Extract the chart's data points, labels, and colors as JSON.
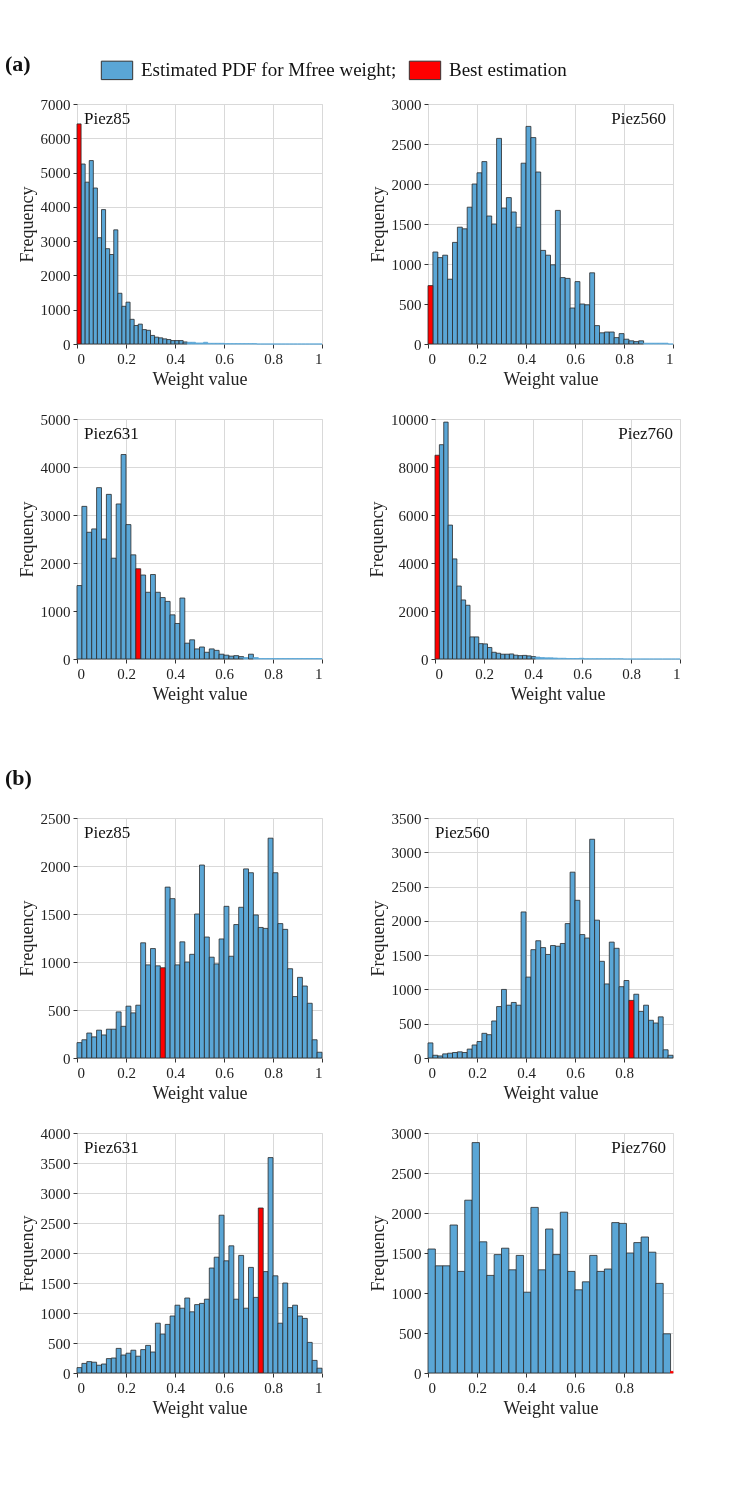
{
  "chart_data": [
    {
      "type": "histogram",
      "title": "Piez85",
      "xlabel": "Weight value",
      "ylabel": "Frequency",
      "annotations": [
        "(a)"
      ],
      "legend": "top",
      "grid": true,
      "xlim": [
        0,
        1
      ],
      "xticks": [
        0,
        0.2,
        0.4,
        0.6,
        0.8,
        1
      ],
      "ylim": [
        0,
        7000
      ],
      "yticks": [
        0,
        1000,
        2000,
        3000,
        4000,
        5000,
        6000,
        7000
      ],
      "bins": [
        0,
        0.0167,
        0.0333,
        0.05,
        0.0667,
        0.0833,
        0.1,
        0.1167,
        0.1333,
        0.15,
        0.1667,
        0.1833,
        0.2,
        0.2167,
        0.2333,
        0.25,
        0.2667,
        0.2833,
        0.3,
        0.3167,
        0.3333,
        0.35,
        0.3667,
        0.3833,
        0.4,
        0.4167,
        0.4333,
        0.45,
        0.4667,
        0.4833,
        0.5,
        0.5167,
        0.5333,
        0.55,
        0.5667,
        0.5833,
        0.6,
        0.6167,
        0.6333,
        0.65,
        0.6667,
        0.6833,
        0.7,
        0.7167,
        0.7333,
        0.75,
        0.7667,
        0.7833,
        0.8,
        0.8167,
        0.8333,
        0.85,
        0.8667,
        0.8833,
        0.9,
        0.9167,
        0.9333,
        0.95,
        0.9667,
        0.9833,
        1
      ],
      "series": [
        {
          "name": "Estimated PDF for Mfree weight;",
          "color": "#5aa6d6",
          "values": [
            null,
            5250,
            4720,
            5350,
            4550,
            3100,
            3920,
            2780,
            2610,
            3330,
            1480,
            1100,
            1220,
            720,
            540,
            580,
            420,
            400,
            250,
            200,
            180,
            150,
            130,
            100,
            100,
            100,
            60,
            50,
            50,
            30,
            30,
            50,
            20,
            20,
            20,
            20,
            10,
            10,
            10,
            10,
            10,
            10,
            10,
            10,
            0,
            0,
            0,
            0,
            0,
            0,
            0,
            0,
            0,
            0,
            0,
            0,
            0,
            0,
            0,
            0
          ]
        },
        {
          "name": "Best estimation",
          "color": "#ff0000",
          "values": [
            6420,
            null,
            null,
            null,
            null,
            null,
            null,
            null,
            null,
            null,
            null,
            null,
            null,
            null,
            null,
            null,
            null,
            null,
            null,
            null,
            null,
            null,
            null,
            null,
            null,
            null,
            null,
            null,
            null,
            null,
            null,
            null,
            null,
            null,
            null,
            null,
            null,
            null,
            null,
            null,
            null,
            null,
            null,
            null,
            null,
            null,
            null,
            null,
            null,
            null,
            null,
            null,
            null,
            null,
            null,
            null,
            null,
            null,
            null,
            null
          ]
        }
      ]
    },
    {
      "type": "histogram",
      "title": "Piez560",
      "xlabel": "Weight value",
      "ylabel": "Frequency",
      "grid": true,
      "xlim": [
        0,
        1
      ],
      "xticks": [
        0,
        0.2,
        0.4,
        0.6,
        0.8,
        1
      ],
      "ylim": [
        0,
        3000
      ],
      "yticks": [
        0,
        500,
        1000,
        1500,
        2000,
        2500,
        3000
      ],
      "bins": [
        0,
        0.02,
        0.04,
        0.06,
        0.08,
        0.1,
        0.12,
        0.14,
        0.16,
        0.18,
        0.2,
        0.22,
        0.24,
        0.26,
        0.28,
        0.3,
        0.32,
        0.34,
        0.36,
        0.38,
        0.4,
        0.42,
        0.44,
        0.46,
        0.48,
        0.5,
        0.52,
        0.54,
        0.56,
        0.58,
        0.6,
        0.62,
        0.64,
        0.66,
        0.68,
        0.7,
        0.72,
        0.74,
        0.76,
        0.78,
        0.8,
        0.82,
        0.84,
        0.86,
        0.88,
        0.9,
        0.92,
        0.94,
        0.96,
        0.98,
        1
      ],
      "series": [
        {
          "color": "#5aa6d6",
          "values": [
            null,
            1150,
            1080,
            1110,
            810,
            1270,
            1460,
            1440,
            1710,
            2000,
            2140,
            2280,
            1600,
            1500,
            2570,
            1700,
            1830,
            1650,
            1460,
            2260,
            2720,
            2580,
            2150,
            1170,
            1110,
            990,
            1670,
            830,
            820,
            450,
            780,
            500,
            490,
            890,
            230,
            140,
            150,
            150,
            80,
            130,
            60,
            40,
            30,
            40,
            10,
            10,
            10,
            10,
            10,
            0
          ]
        },
        {
          "color": "#ff0000",
          "values": [
            730,
            null,
            null,
            null,
            null,
            null,
            null,
            null,
            null,
            null,
            null,
            null,
            null,
            null,
            null,
            null,
            null,
            null,
            null,
            null,
            null,
            null,
            null,
            null,
            null,
            null,
            null,
            null,
            null,
            null,
            null,
            null,
            null,
            null,
            null,
            null,
            null,
            null,
            null,
            null,
            null,
            null,
            null,
            null,
            null,
            null,
            null,
            null,
            null,
            null
          ]
        }
      ]
    },
    {
      "type": "histogram",
      "title": "Piez631",
      "xlabel": "Weight value",
      "ylabel": "Frequency",
      "grid": true,
      "xlim": [
        0,
        1
      ],
      "xticks": [
        0,
        0.2,
        0.4,
        0.6,
        0.8,
        1
      ],
      "ylim": [
        0,
        5000
      ],
      "yticks": [
        0,
        1000,
        2000,
        3000,
        4000,
        5000
      ],
      "bins": [
        0,
        0.02,
        0.04,
        0.06,
        0.08,
        0.1,
        0.12,
        0.14,
        0.16,
        0.18,
        0.2,
        0.22,
        0.24,
        0.26,
        0.28,
        0.3,
        0.32,
        0.34,
        0.36,
        0.38,
        0.4,
        0.42,
        0.44,
        0.46,
        0.48,
        0.5,
        0.52,
        0.54,
        0.56,
        0.58,
        0.6,
        0.62,
        0.64,
        0.66,
        0.68,
        0.7,
        0.72,
        0.74,
        0.76,
        0.78,
        0.8,
        0.82,
        0.84,
        0.86,
        0.88,
        0.9,
        0.92,
        0.94,
        0.96,
        0.98,
        1
      ],
      "series": [
        {
          "color": "#5aa6d6",
          "values": [
            1530,
            3180,
            2640,
            2710,
            3570,
            2500,
            3430,
            2100,
            3230,
            4260,
            2800,
            2170,
            null,
            1750,
            1390,
            1760,
            1390,
            1280,
            1200,
            920,
            740,
            1270,
            330,
            400,
            210,
            250,
            140,
            210,
            180,
            100,
            80,
            60,
            70,
            50,
            30,
            100,
            30,
            10,
            10,
            10,
            10,
            10,
            10,
            10,
            10,
            10,
            10,
            10,
            10,
            10
          ]
        },
        {
          "color": "#ff0000",
          "values": [
            null,
            null,
            null,
            null,
            null,
            null,
            null,
            null,
            null,
            null,
            null,
            null,
            1880,
            null,
            null,
            null,
            null,
            null,
            null,
            null,
            null,
            null,
            null,
            null,
            null,
            null,
            null,
            null,
            null,
            null,
            null,
            null,
            null,
            null,
            null,
            null,
            null,
            null,
            null,
            null,
            null,
            null,
            null,
            null,
            null,
            null,
            null,
            null,
            null,
            null
          ]
        }
      ]
    },
    {
      "type": "histogram",
      "title": "Piez760",
      "xlabel": "Weight value",
      "ylabel": "Frequency",
      "grid": true,
      "xlim": [
        0,
        1
      ],
      "xticks": [
        0,
        0.2,
        0.4,
        0.6,
        0.8,
        1
      ],
      "ylim": [
        0,
        10000
      ],
      "yticks": [
        0,
        2000,
        4000,
        6000,
        8000,
        10000
      ],
      "bins": [
        0,
        0.0179,
        0.0357,
        0.0536,
        0.0714,
        0.0893,
        0.1071,
        0.125,
        0.1429,
        0.1607,
        0.1786,
        0.1964,
        0.2143,
        0.2321,
        0.25,
        0.2679,
        0.2857,
        0.3036,
        0.3214,
        0.3393,
        0.3571,
        0.375,
        0.3929,
        0.4107,
        0.4286,
        0.4464,
        0.4643,
        0.4821,
        0.5,
        0.5179,
        0.5357,
        0.5536,
        0.5714,
        0.5893,
        0.6071,
        0.625,
        0.6429,
        0.6607,
        0.6786,
        0.6964,
        0.7143,
        0.7321,
        0.75,
        0.7679,
        0.7857,
        0.8036,
        0.8214,
        0.8393,
        0.8571,
        0.875,
        0.8929,
        0.9107,
        0.9286,
        0.9464,
        0.9643,
        0.9821,
        1
      ],
      "series": [
        {
          "color": "#5aa6d6",
          "values": [
            null,
            8930,
            9870,
            5580,
            4170,
            3040,
            2460,
            2240,
            920,
            920,
            640,
            630,
            480,
            280,
            240,
            200,
            200,
            210,
            160,
            140,
            150,
            130,
            100,
            80,
            60,
            50,
            50,
            40,
            30,
            30,
            20,
            20,
            20,
            30,
            10,
            10,
            10,
            10,
            10,
            10,
            10,
            10,
            10,
            0,
            0,
            0,
            0,
            0,
            0,
            0,
            0,
            0,
            0,
            0,
            0,
            0
          ]
        },
        {
          "color": "#ff0000",
          "values": [
            8490,
            null,
            null,
            null,
            null,
            null,
            null,
            null,
            null,
            null,
            null,
            null,
            null,
            null,
            null,
            null,
            null,
            null,
            null,
            null,
            null,
            null,
            null,
            null,
            null,
            null,
            null,
            null,
            null,
            null,
            null,
            null,
            null,
            null,
            null,
            null,
            null,
            null,
            null,
            null,
            null,
            null,
            null,
            null,
            null,
            null,
            null,
            null,
            null,
            null,
            null,
            null,
            null,
            null,
            null,
            null
          ]
        }
      ]
    },
    {
      "type": "histogram",
      "title": "Piez85",
      "xlabel": "Weight value",
      "ylabel": "Frequency",
      "annotations": [
        "(b)"
      ],
      "legend": "top",
      "grid": true,
      "xlim": [
        0,
        1
      ],
      "xticks": [
        0,
        0.2,
        0.4,
        0.6,
        0.8,
        1
      ],
      "ylim": [
        0,
        2500
      ],
      "yticks": [
        0,
        500,
        1000,
        1500,
        2000,
        2500
      ],
      "bins": [
        0,
        0.02,
        0.04,
        0.06,
        0.08,
        0.1,
        0.12,
        0.14,
        0.16,
        0.18,
        0.2,
        0.22,
        0.24,
        0.26,
        0.28,
        0.3,
        0.32,
        0.34,
        0.36,
        0.38,
        0.4,
        0.42,
        0.44,
        0.46,
        0.48,
        0.5,
        0.52,
        0.54,
        0.56,
        0.58,
        0.6,
        0.62,
        0.64,
        0.66,
        0.68,
        0.7,
        0.72,
        0.74,
        0.76,
        0.78,
        0.8,
        0.82,
        0.84,
        0.86,
        0.88,
        0.9,
        0.92,
        0.94,
        0.96,
        0.98,
        1
      ],
      "series": [
        {
          "name": "Estimated PDF for Mfree weight;",
          "color": "#5aa6d6",
          "values": [
            160,
            190,
            260,
            220,
            290,
            240,
            300,
            300,
            480,
            330,
            540,
            470,
            550,
            1200,
            970,
            1140,
            960,
            null,
            1780,
            1660,
            970,
            1210,
            1000,
            1080,
            1500,
            2010,
            1260,
            1050,
            980,
            1240,
            1580,
            1060,
            1390,
            1570,
            1970,
            1930,
            1490,
            1360,
            1350,
            2290,
            1930,
            1400,
            1340,
            930,
            640,
            840,
            750,
            570,
            190,
            60
          ]
        },
        {
          "name": "Best estimation",
          "color": "#ff0000",
          "values": [
            null,
            null,
            null,
            null,
            null,
            null,
            null,
            null,
            null,
            null,
            null,
            null,
            null,
            null,
            null,
            null,
            null,
            940,
            null,
            null,
            null,
            null,
            null,
            null,
            null,
            null,
            null,
            null,
            null,
            null,
            null,
            null,
            null,
            null,
            null,
            null,
            null,
            null,
            null,
            null,
            null,
            null,
            null,
            null,
            null,
            null,
            null,
            null,
            null,
            null
          ]
        }
      ]
    },
    {
      "type": "histogram",
      "title": "Piez560",
      "xlabel": "Weight value",
      "ylabel": "Frequency",
      "grid": true,
      "xlim": [
        0,
        1
      ],
      "xticks": [
        0,
        0.2,
        0.4,
        0.6,
        0.8
      ],
      "ylim": [
        0,
        3500
      ],
      "yticks": [
        0,
        500,
        1000,
        1500,
        2000,
        2500,
        3000,
        3500
      ],
      "bins": [
        0,
        0.02,
        0.04,
        0.06,
        0.08,
        0.1,
        0.12,
        0.14,
        0.16,
        0.18,
        0.2,
        0.22,
        0.24,
        0.26,
        0.28,
        0.3,
        0.32,
        0.34,
        0.36,
        0.38,
        0.4,
        0.42,
        0.44,
        0.46,
        0.48,
        0.5,
        0.52,
        0.54,
        0.56,
        0.58,
        0.6,
        0.62,
        0.64,
        0.66,
        0.68,
        0.7,
        0.72,
        0.74,
        0.76,
        0.78,
        0.8,
        0.82,
        0.84,
        0.86,
        0.88,
        0.9,
        0.92,
        0.94,
        0.96,
        0.98,
        1
      ],
      "series": [
        {
          "color": "#5aa6d6",
          "values": [
            220,
            40,
            30,
            60,
            70,
            80,
            90,
            80,
            130,
            190,
            240,
            360,
            340,
            540,
            750,
            1000,
            770,
            810,
            770,
            2130,
            1180,
            1580,
            1710,
            1610,
            1510,
            1640,
            1630,
            1670,
            1960,
            2710,
            2300,
            1800,
            1750,
            3190,
            2010,
            1410,
            1080,
            1690,
            1600,
            1040,
            1130,
            null,
            930,
            680,
            770,
            550,
            510,
            600,
            120,
            40
          ]
        },
        {
          "color": "#ff0000",
          "values": [
            null,
            null,
            null,
            null,
            null,
            null,
            null,
            null,
            null,
            null,
            null,
            null,
            null,
            null,
            null,
            null,
            null,
            null,
            null,
            null,
            null,
            null,
            null,
            null,
            null,
            null,
            null,
            null,
            null,
            null,
            null,
            null,
            null,
            null,
            null,
            null,
            null,
            null,
            null,
            null,
            null,
            840,
            null,
            null,
            null,
            null,
            null,
            null,
            null,
            null
          ]
        }
      ]
    },
    {
      "type": "histogram",
      "title": "Piez631",
      "xlabel": "Weight value",
      "ylabel": "Frequency",
      "grid": true,
      "xlim": [
        0,
        1
      ],
      "xticks": [
        0,
        0.2,
        0.4,
        0.6,
        0.8,
        1
      ],
      "ylim": [
        0,
        4000
      ],
      "yticks": [
        0,
        500,
        1000,
        1500,
        2000,
        2500,
        3000,
        3500,
        4000
      ],
      "bins": [
        0,
        0.02,
        0.04,
        0.06,
        0.08,
        0.1,
        0.12,
        0.14,
        0.16,
        0.18,
        0.2,
        0.22,
        0.24,
        0.26,
        0.28,
        0.3,
        0.32,
        0.34,
        0.36,
        0.38,
        0.4,
        0.42,
        0.44,
        0.46,
        0.48,
        0.5,
        0.52,
        0.54,
        0.56,
        0.58,
        0.6,
        0.62,
        0.64,
        0.66,
        0.68,
        0.7,
        0.72,
        0.74,
        0.76,
        0.78,
        0.8,
        0.82,
        0.84,
        0.86,
        0.88,
        0.9,
        0.92,
        0.94,
        0.96,
        0.98,
        1
      ],
      "series": [
        {
          "color": "#5aa6d6",
          "values": [
            90,
            160,
            190,
            180,
            130,
            150,
            240,
            250,
            410,
            300,
            330,
            380,
            280,
            390,
            460,
            350,
            830,
            650,
            810,
            950,
            1130,
            1080,
            1250,
            1020,
            1140,
            1160,
            1230,
            1750,
            1930,
            2630,
            1870,
            2120,
            1230,
            1960,
            1080,
            1760,
            1260,
            null,
            1690,
            3590,
            1620,
            830,
            1500,
            1090,
            1130,
            950,
            910,
            510,
            210,
            80
          ]
        },
        {
          "color": "#ff0000",
          "values": [
            null,
            null,
            null,
            null,
            null,
            null,
            null,
            null,
            null,
            null,
            null,
            null,
            null,
            null,
            null,
            null,
            null,
            null,
            null,
            null,
            null,
            null,
            null,
            null,
            null,
            null,
            null,
            null,
            null,
            null,
            null,
            null,
            null,
            null,
            null,
            null,
            null,
            2750,
            null,
            null,
            null,
            null,
            null,
            null,
            null,
            null,
            null,
            null,
            null,
            null
          ]
        }
      ]
    },
    {
      "type": "histogram",
      "title": "Piez760",
      "xlabel": "Weight value",
      "ylabel": "Frequency",
      "grid": true,
      "xlim": [
        0,
        1
      ],
      "xticks": [
        0,
        0.2,
        0.4,
        0.6,
        0.8
      ],
      "ylim": [
        0,
        3000
      ],
      "yticks": [
        0,
        500,
        1000,
        1500,
        2000,
        2500,
        3000
      ],
      "bins": [
        0,
        0.03,
        0.06,
        0.09,
        0.12,
        0.15,
        0.18,
        0.21,
        0.24,
        0.27,
        0.3,
        0.33,
        0.36,
        0.39,
        0.42,
        0.45,
        0.48,
        0.51,
        0.54,
        0.57,
        0.6,
        0.63,
        0.66,
        0.69,
        0.72,
        0.75,
        0.78,
        0.81,
        0.84,
        0.87,
        0.9,
        0.93,
        0.96,
        0.99,
        1
      ],
      "series": [
        {
          "color": "#5aa6d6",
          "values": [
            1550,
            1340,
            1340,
            1850,
            1270,
            2160,
            2880,
            1640,
            1220,
            1480,
            1560,
            1290,
            1470,
            1010,
            2070,
            1290,
            1800,
            1480,
            2010,
            1270,
            1040,
            1140,
            1470,
            1270,
            1300,
            1880,
            1870,
            1500,
            1630,
            1700,
            1510,
            1120,
            490,
            null
          ]
        },
        {
          "color": "#ff0000",
          "values": [
            null,
            null,
            null,
            null,
            null,
            null,
            null,
            null,
            null,
            null,
            null,
            null,
            null,
            null,
            null,
            null,
            null,
            null,
            null,
            null,
            null,
            null,
            null,
            null,
            null,
            null,
            null,
            null,
            null,
            null,
            null,
            null,
            null,
            20
          ]
        }
      ]
    }
  ]
}
